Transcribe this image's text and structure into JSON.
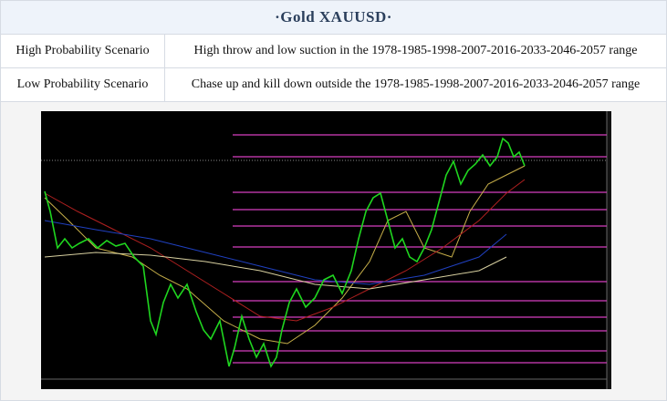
{
  "header": {
    "title": "·Gold XAUUSD·"
  },
  "table": {
    "rows": [
      [
        "High Probability Scenario",
        "High throw and low suction in the 1978-1985-1998-2007-2016-2033-2046-2057 range"
      ],
      [
        "Low Probability Scenario",
        "Chase up and kill down outside the 1978-1985-1998-2007-2016-2033-2046-2057 range"
      ]
    ]
  }
}
